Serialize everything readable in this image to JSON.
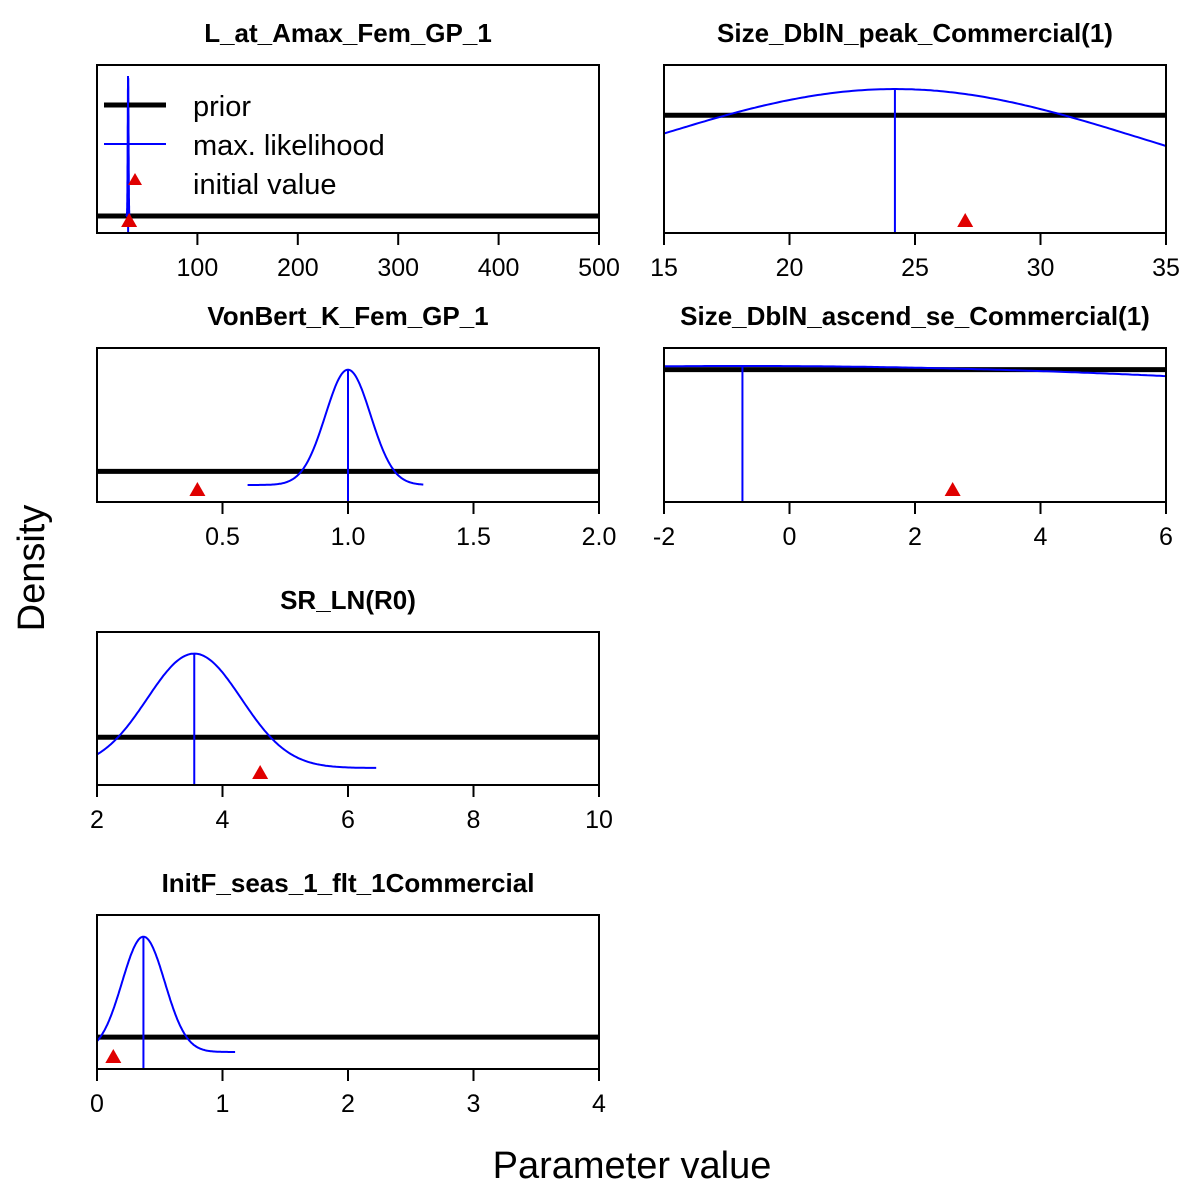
{
  "figure": {
    "xlabel": "Parameter value",
    "ylabel": "Density",
    "legend": {
      "position": "top-left of first panel",
      "items": [
        {
          "label": "prior",
          "style": "thick black line"
        },
        {
          "label": "max. likelihood",
          "style": "thin blue line"
        },
        {
          "label": "initial value",
          "style": "red triangle"
        }
      ]
    },
    "colors": {
      "prior": "#000000",
      "likelihood": "#0000ff",
      "initial": "#e00000"
    }
  },
  "chart_data": [
    {
      "type": "line",
      "title": "L_at_Amax_Fem_GP_1",
      "xlim": [
        0,
        500
      ],
      "xticks": [
        100,
        200,
        300,
        400,
        500
      ],
      "xtick_labels": [
        "100",
        "200",
        "300",
        "400",
        "500"
      ],
      "ymax": 1.0,
      "prior_level": 0.0,
      "mle": 31,
      "initial": 32,
      "likelihood_curve": {
        "mean": 31,
        "sd": 0.4,
        "peak": 1.0
      },
      "curve_range": [
        29,
        33
      ]
    },
    {
      "type": "line",
      "title": "Size_DblN_peak_Commercial(1)",
      "xlim": [
        15,
        35
      ],
      "xticks": [
        15,
        20,
        25,
        30,
        35
      ],
      "xtick_labels": [
        "15",
        "20",
        "25",
        "30",
        "35"
      ],
      "ymax": 1.0,
      "prior_level": 0.73,
      "mle": 24.2,
      "initial": 27,
      "likelihood_curve": {
        "mean": 24.2,
        "sd": 9.9,
        "peak": 0.92
      },
      "curve_range": [
        15,
        35
      ]
    },
    {
      "type": "line",
      "title": "VonBert_K_Fem_GP_1",
      "xlim": [
        0,
        2.0
      ],
      "xticks": [
        0.5,
        1.0,
        1.5,
        2.0
      ],
      "xtick_labels": [
        "0.5",
        "1.0",
        "1.5",
        "2.0"
      ],
      "ymax": 1.0,
      "prior_level": 0.11,
      "mle": 1.0,
      "initial": 0.4,
      "likelihood_curve": {
        "mean": 1.0,
        "sd": 0.09,
        "peak": 0.93
      },
      "curve_range": [
        0.6,
        1.3
      ]
    },
    {
      "type": "line",
      "title": "Size_DblN_ascend_se_Commercial(1)",
      "xlim": [
        -2,
        6
      ],
      "xticks": [
        -2,
        0,
        2,
        4,
        6
      ],
      "xtick_labels": [
        "-2",
        "0",
        "2",
        "4",
        "6"
      ],
      "ymax": 1.0,
      "prior_level": 0.93,
      "mle": -0.75,
      "initial": 2.6,
      "likelihood_curve": {
        "mean": -0.75,
        "sd": 16.0,
        "peak": 0.96
      },
      "curve_range": [
        -2,
        6
      ]
    },
    {
      "type": "line",
      "title": "SR_LN(R0)",
      "xlim": [
        2,
        10
      ],
      "xticks": [
        2,
        4,
        6,
        8,
        10
      ],
      "xtick_labels": [
        "2",
        "4",
        "6",
        "8",
        "10"
      ],
      "ymax": 1.0,
      "prior_level": 0.25,
      "mle": 3.55,
      "initial": 4.6,
      "likelihood_curve": {
        "mean": 3.55,
        "sd": 0.75,
        "peak": 0.93
      },
      "curve_range": [
        2,
        6.45
      ]
    },
    {
      "type": "line",
      "title": "InitF_seas_1_flt_1Commercial",
      "xlim": [
        0,
        4
      ],
      "xticks": [
        0,
        1,
        2,
        3,
        4
      ],
      "xtick_labels": [
        "0",
        "1",
        "2",
        "3",
        "4"
      ],
      "ymax": 1.0,
      "prior_level": 0.12,
      "mle": 0.37,
      "initial": 0.13,
      "likelihood_curve": {
        "mean": 0.37,
        "sd": 0.17,
        "peak": 0.93
      },
      "curve_range": [
        0,
        1.1
      ]
    }
  ]
}
